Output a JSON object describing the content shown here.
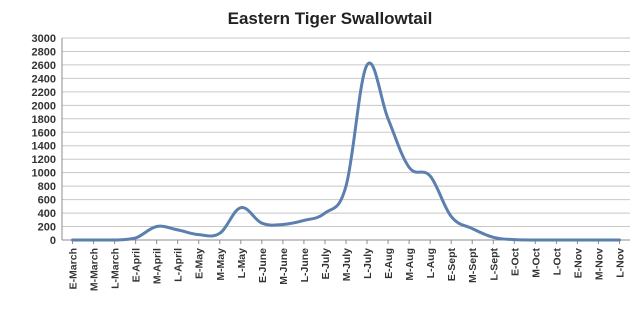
{
  "chart_data": {
    "type": "line",
    "title": "Eastern Tiger Swallowtail",
    "xlabel": "",
    "ylabel": "",
    "ylim": [
      0,
      3000
    ],
    "yticks": [
      0,
      200,
      400,
      600,
      800,
      1000,
      1200,
      1400,
      1600,
      1800,
      2000,
      2200,
      2400,
      2600,
      2800,
      3000
    ],
    "grid": true,
    "legend": "none",
    "categories": [
      "E-March",
      "M-March",
      "L-March",
      "E-April",
      "M-April",
      "L-April",
      "E-May",
      "M-May",
      "L-May",
      "E-June",
      "M-June",
      "L-June",
      "E-July",
      "M-July",
      "L-July",
      "E-Aug",
      "M-Aug",
      "L-Aug",
      "E-Sept",
      "M-Sept",
      "L-Sept",
      "E-Oct",
      "M-Oct",
      "L-Oct",
      "E-Nov",
      "M-Nov",
      "L-Nov"
    ],
    "series": [
      {
        "color": "#5b7fae",
        "values": [
          0,
          0,
          0,
          30,
          200,
          150,
          80,
          100,
          480,
          250,
          230,
          290,
          400,
          800,
          2600,
          1800,
          1080,
          950,
          350,
          170,
          40,
          5,
          0,
          0,
          0,
          0,
          0
        ]
      }
    ]
  }
}
